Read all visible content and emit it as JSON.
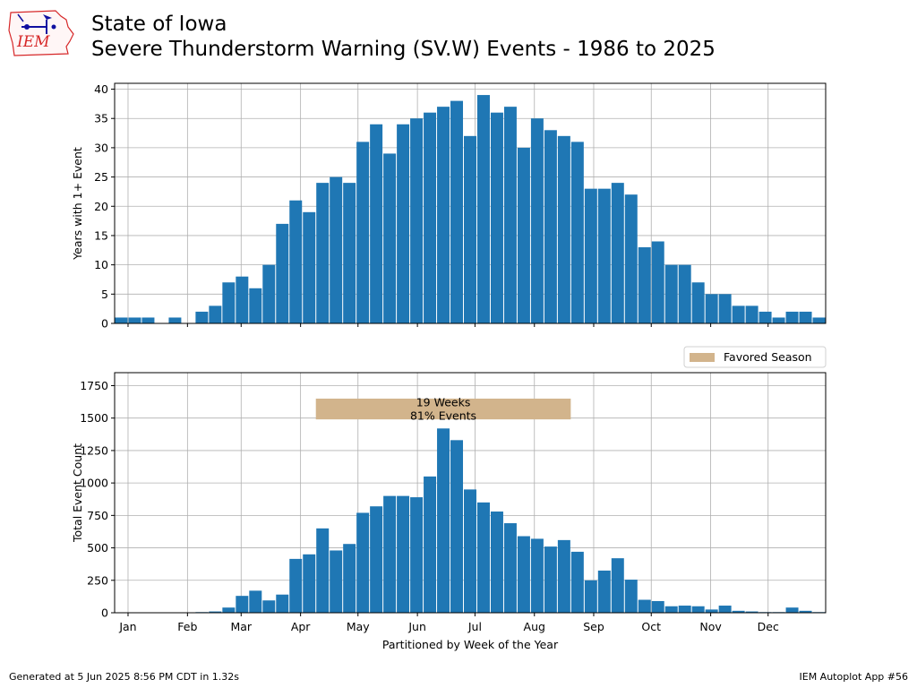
{
  "header": {
    "title_line1": "State of Iowa",
    "title_line2": "Severe Thunderstorm Warning (SV.W) Events - 1986 to 2025",
    "logo_text": "IEM"
  },
  "footer": {
    "left": "Generated at 5 Jun 2025 8:56 PM CDT in 1.32s",
    "right": "IEM Autoplot App #56"
  },
  "colors": {
    "bar": "#1f77b4",
    "season": "#d2b48c",
    "grid": "#b0b0b0",
    "logo_red": "#d62728",
    "logo_blue": "#1010a0"
  },
  "chart_data": [
    {
      "type": "bar",
      "ylabel": "Years with 1+ Event",
      "ylim": [
        0,
        41
      ],
      "yticks": [
        0,
        5,
        10,
        15,
        20,
        25,
        30,
        35,
        40
      ],
      "x_week_range": [
        0,
        53
      ],
      "month_ticks": [
        {
          "label": "Jan",
          "week": 1
        },
        {
          "label": "Feb",
          "week": 5.43
        },
        {
          "label": "Mar",
          "week": 9.43
        },
        {
          "label": "Apr",
          "week": 13.86
        },
        {
          "label": "May",
          "week": 18.14
        },
        {
          "label": "Jun",
          "week": 22.57
        },
        {
          "label": "Jul",
          "week": 26.86
        },
        {
          "label": "Aug",
          "week": 31.29
        },
        {
          "label": "Sep",
          "week": 35.71
        },
        {
          "label": "Oct",
          "week": 40
        },
        {
          "label": "Nov",
          "week": 44.43
        },
        {
          "label": "Dec",
          "week": 48.71
        }
      ],
      "grid": true,
      "values": [
        1,
        1,
        1,
        0,
        1,
        0,
        2,
        3,
        7,
        8,
        6,
        10,
        17,
        21,
        19,
        24,
        25,
        24,
        31,
        34,
        29,
        34,
        35,
        36,
        37,
        38,
        32,
        39,
        36,
        37,
        30,
        35,
        33,
        32,
        31,
        23,
        23,
        24,
        22,
        13,
        14,
        10,
        10,
        7,
        5,
        5,
        3,
        3,
        2,
        1,
        2,
        2,
        1
      ]
    },
    {
      "type": "bar",
      "ylabel": "Total Event Count",
      "xlabel": "Partitioned by Week of the Year",
      "ylim": [
        0,
        1850
      ],
      "yticks": [
        0,
        250,
        500,
        750,
        1000,
        1250,
        1500,
        1750
      ],
      "x_week_range": [
        0,
        53
      ],
      "grid": true,
      "values": [
        2,
        2,
        2,
        0,
        3,
        0,
        5,
        10,
        40,
        130,
        170,
        95,
        140,
        415,
        450,
        650,
        480,
        530,
        770,
        820,
        900,
        900,
        890,
        1050,
        1420,
        1330,
        950,
        850,
        780,
        690,
        590,
        570,
        510,
        560,
        470,
        250,
        325,
        420,
        255,
        100,
        90,
        50,
        55,
        50,
        25,
        55,
        15,
        10,
        5,
        5,
        40,
        15,
        5
      ],
      "legend": {
        "label": "Favored Season",
        "placement": "above plot, right"
      },
      "annotation": {
        "line1": "19 Weeks",
        "line2": "81% Events",
        "start_week": 15,
        "end_week": 34,
        "y_low": 1490,
        "y_high": 1650
      }
    }
  ]
}
